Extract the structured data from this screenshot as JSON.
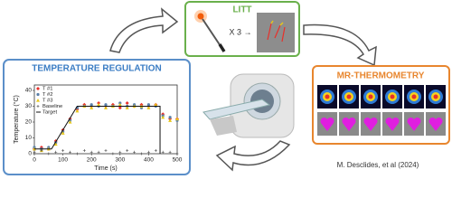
{
  "panels": {
    "litt": {
      "title": "LITT",
      "multiplier": "X 3 →"
    },
    "mr": {
      "title": "MR-THERMOMETRY"
    },
    "regulation": {
      "title": "TEMPERATURE REGULATION"
    },
    "citation": "M. Desclides, et al (2024)"
  },
  "chart_data": {
    "type": "scatter",
    "xlabel": "Time (s)",
    "ylabel": "Temperature (°C)",
    "xlim": [
      0,
      500
    ],
    "xticks": [
      0,
      100,
      200,
      300,
      400,
      500
    ],
    "ylim": [
      0,
      40
    ],
    "yticks": [
      0,
      10,
      20,
      30,
      40
    ],
    "x": [
      0,
      25,
      50,
      75,
      100,
      125,
      150,
      175,
      200,
      225,
      250,
      275,
      300,
      325,
      350,
      375,
      400,
      425,
      450,
      475,
      500
    ],
    "series": [
      {
        "name": "T #1",
        "color": "#e8302a",
        "marker": "diamond",
        "values": [
          3,
          4,
          3,
          8,
          15,
          22,
          28,
          31,
          30,
          32,
          30,
          31,
          29,
          32,
          30,
          31,
          30,
          31,
          25,
          22,
          22
        ]
      },
      {
        "name": "T #2",
        "color": "#5a7fa8",
        "marker": "circle",
        "values": [
          4,
          3,
          4,
          7,
          14,
          21,
          29,
          30,
          31,
          30,
          31,
          30,
          32,
          30,
          31,
          29,
          31,
          30,
          24,
          23,
          21
        ]
      },
      {
        "name": "T #3",
        "color": "#e6c619",
        "marker": "triangle",
        "values": [
          3,
          2,
          3,
          6,
          13,
          20,
          27,
          30,
          29,
          31,
          29,
          30,
          31,
          29,
          30,
          30,
          29,
          31,
          23,
          21,
          22
        ]
      },
      {
        "name": "Baseline",
        "color": "#444444",
        "marker": "plus",
        "values": [
          1,
          2,
          0,
          1,
          2,
          1,
          0,
          2,
          1,
          1,
          2,
          0,
          1,
          2,
          1,
          0,
          1,
          2,
          1,
          1,
          0
        ]
      },
      {
        "name": "Target",
        "color": "#111111",
        "marker": "line",
        "x": [
          0,
          60,
          150,
          440,
          440
        ],
        "values": [
          3,
          3,
          30,
          30,
          0
        ]
      }
    ]
  }
}
